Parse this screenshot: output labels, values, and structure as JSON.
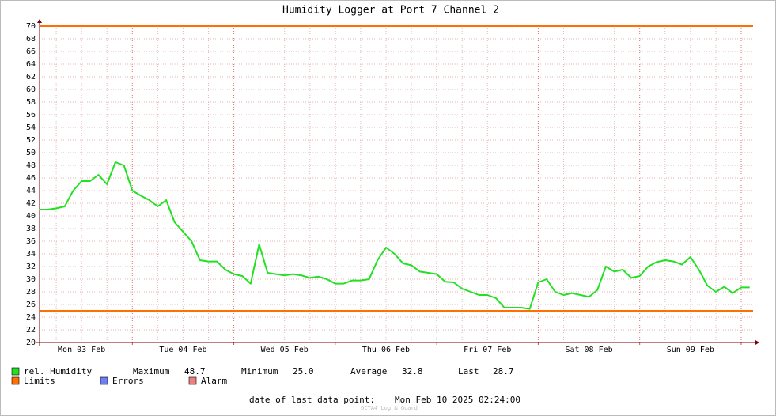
{
  "chart_data": {
    "type": "line",
    "title": "Humidity Logger at Port 7 Channel 2",
    "categories": [
      null,
      null,
      null,
      null,
      null,
      "Mon 03 Feb",
      null,
      null,
      null,
      null,
      null,
      null,
      null,
      null,
      null,
      null,
      null,
      "Tue 04 Feb",
      null,
      null,
      null,
      null,
      null,
      null,
      null,
      null,
      null,
      null,
      null,
      "Wed 05 Feb",
      null,
      null,
      null,
      null,
      null,
      null,
      null,
      null,
      null,
      null,
      null,
      "Thu 06 Feb",
      null,
      null,
      null,
      null,
      null,
      null,
      null,
      null,
      null,
      null,
      null,
      "Fri 07 Feb",
      null,
      null,
      null,
      null,
      null,
      null,
      null,
      null,
      null,
      null,
      null,
      "Sat 08 Feb",
      null,
      null,
      null,
      null,
      null,
      null,
      null,
      null,
      null,
      null,
      null,
      "Sun 09 Feb",
      null,
      null,
      null,
      null,
      null,
      null,
      null
    ],
    "series": [
      {
        "name": "rel. Humidity",
        "color": "#22e022",
        "values": [
          41,
          41,
          41.2,
          41.5,
          44,
          45.5,
          45.5,
          46.5,
          45,
          48.5,
          48,
          44,
          43.2,
          42.5,
          41.5,
          42.5,
          39,
          37.5,
          36,
          33,
          32.8,
          32.8,
          31.5,
          30.8,
          30.5,
          29.3,
          35.5,
          31,
          30.8,
          30.6,
          30.8,
          30.6,
          30.2,
          30.4,
          30,
          29.3,
          29.3,
          29.8,
          29.8,
          30,
          33,
          35,
          34,
          32.5,
          32.2,
          31.2,
          31,
          30.8,
          29.6,
          29.5,
          28.5,
          28,
          27.5,
          27.5,
          27,
          25.5,
          25.5,
          25.5,
          25.3,
          29.5,
          30,
          28,
          27.5,
          27.8,
          27.5,
          27.2,
          28.3,
          32,
          31.2,
          31.5,
          30.2,
          30.5,
          32,
          32.7,
          33,
          32.8,
          32.3,
          33.5,
          31.5,
          29,
          28,
          28.8,
          27.8,
          28.7,
          28.7
        ]
      }
    ],
    "limits": {
      "name": "Limits",
      "color": "#ff7000",
      "values": [
        25,
        70
      ]
    },
    "legend_extra": [
      {
        "name": "Errors",
        "color": "#6f7ff0"
      },
      {
        "name": "Alarm",
        "color": "#f07f7f"
      }
    ],
    "stats": [
      {
        "name": "Maximum",
        "value": 48.7
      },
      {
        "name": "Minimum",
        "value": 25,
        "label": "25.0"
      },
      {
        "name": "Average",
        "value": 32.8
      },
      {
        "name": "Last",
        "value": 28.7
      }
    ],
    "ylim": [
      20,
      70
    ],
    "yticks": [
      20,
      22,
      24,
      26,
      28,
      30,
      32,
      34,
      36,
      38,
      40,
      42,
      44,
      46,
      48,
      50,
      52,
      54,
      56,
      58,
      60,
      62,
      64,
      66,
      68,
      70
    ],
    "grid": true,
    "footer_label": "date of last data point:",
    "footer_value": "Mon Feb 10 2025 02:24:00",
    "watermark": "OCTA4 Log & Guard"
  }
}
